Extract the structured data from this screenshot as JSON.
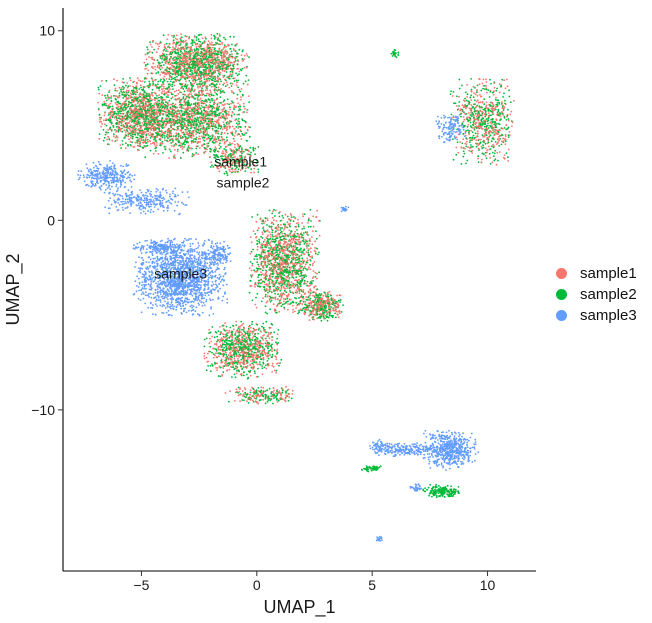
{
  "chart_data": {
    "type": "scatter",
    "xlabel": "UMAP_1",
    "ylabel": "UMAP_2",
    "xlim": [
      -8.4,
      12.1
    ],
    "ylim": [
      -18.5,
      11.2
    ],
    "xticks": [
      -5,
      0,
      5,
      10
    ],
    "yticks": [
      10,
      0,
      -10
    ],
    "xtick_labels": [
      "−5",
      "0",
      "5",
      "10"
    ],
    "ytick_labels": [
      "10",
      "0",
      "−10"
    ],
    "grid": false,
    "legend": {
      "position": "right"
    },
    "series": [
      {
        "name": "sample1",
        "color": "#F8766D"
      },
      {
        "name": "sample2",
        "color": "#00BA38"
      },
      {
        "name": "sample3",
        "color": "#619CFF"
      }
    ],
    "clusters": [
      {
        "series": "mix",
        "cx": -2.6,
        "cy": 8.3,
        "rx": 1.9,
        "ry": 1.3,
        "n": 1500
      },
      {
        "series": "mix",
        "cx": -5.2,
        "cy": 5.6,
        "rx": 1.4,
        "ry": 1.6,
        "n": 1200
      },
      {
        "series": "mix",
        "cx": -2.8,
        "cy": 5.3,
        "rx": 2.1,
        "ry": 1.7,
        "n": 1500
      },
      {
        "series": "mix",
        "cx": -1.0,
        "cy": 3.2,
        "rx": 0.9,
        "ry": 0.7,
        "n": 250
      },
      {
        "series": "mix",
        "cx": 1.2,
        "cy": -2.2,
        "rx": 1.3,
        "ry": 2.3,
        "n": 1400
      },
      {
        "series": "mix",
        "cx": 2.8,
        "cy": -4.5,
        "rx": 0.8,
        "ry": 0.7,
        "n": 400
      },
      {
        "series": "mix",
        "cx": -0.6,
        "cy": -6.8,
        "rx": 1.4,
        "ry": 1.3,
        "n": 900
      },
      {
        "series": "mix",
        "cx": 0.2,
        "cy": -9.2,
        "rx": 1.3,
        "ry": 0.4,
        "n": 200
      },
      {
        "series": "mix",
        "cx": 9.8,
        "cy": 5.2,
        "rx": 1.2,
        "ry": 1.9,
        "n": 700
      },
      {
        "series": "sample3",
        "cx": 8.4,
        "cy": 4.8,
        "rx": 0.6,
        "ry": 0.7,
        "n": 120
      },
      {
        "series": "sample3",
        "cx": -6.5,
        "cy": 2.3,
        "rx": 1.1,
        "ry": 0.7,
        "n": 300
      },
      {
        "series": "sample3",
        "cx": -4.8,
        "cy": 1.0,
        "rx": 1.6,
        "ry": 0.6,
        "n": 260
      },
      {
        "series": "sample3",
        "cx": -3.3,
        "cy": -3.0,
        "rx": 1.7,
        "ry": 1.7,
        "n": 1500
      },
      {
        "series": "sample3",
        "cx": -1.7,
        "cy": -1.8,
        "rx": 0.5,
        "ry": 0.6,
        "n": 120
      },
      {
        "series": "sample3",
        "cx": -4.3,
        "cy": -1.4,
        "rx": 0.9,
        "ry": 0.3,
        "n": 150
      },
      {
        "series": "sample3",
        "cx": 8.4,
        "cy": -12.1,
        "rx": 1.0,
        "ry": 0.9,
        "n": 500
      },
      {
        "series": "sample3",
        "cx": 6.5,
        "cy": -12.1,
        "rx": 1.2,
        "ry": 0.3,
        "n": 200
      },
      {
        "series": "sample3",
        "cx": 5.3,
        "cy": -11.9,
        "rx": 0.4,
        "ry": 0.3,
        "n": 60
      },
      {
        "series": "sample2",
        "cx": 8.0,
        "cy": -14.3,
        "rx": 0.7,
        "ry": 0.3,
        "n": 180
      },
      {
        "series": "sample3",
        "cx": 6.9,
        "cy": -14.1,
        "rx": 0.3,
        "ry": 0.2,
        "n": 30
      },
      {
        "series": "sample2",
        "cx": 5.0,
        "cy": -13.1,
        "rx": 0.4,
        "ry": 0.15,
        "n": 50
      },
      {
        "series": "sample2",
        "cx": 6.0,
        "cy": 8.8,
        "rx": 0.2,
        "ry": 0.2,
        "n": 25
      },
      {
        "series": "sample3",
        "cx": 5.3,
        "cy": -16.8,
        "rx": 0.12,
        "ry": 0.15,
        "n": 15
      },
      {
        "series": "sample3",
        "cx": 3.8,
        "cy": 0.6,
        "rx": 0.2,
        "ry": 0.15,
        "n": 20
      }
    ],
    "annotations": [
      {
        "text": "sample1",
        "x": -0.7,
        "y": 3.1
      },
      {
        "text": "sample2",
        "x": -0.6,
        "y": 2.0
      },
      {
        "text": "sample3",
        "x": -3.3,
        "y": -2.8
      }
    ]
  }
}
